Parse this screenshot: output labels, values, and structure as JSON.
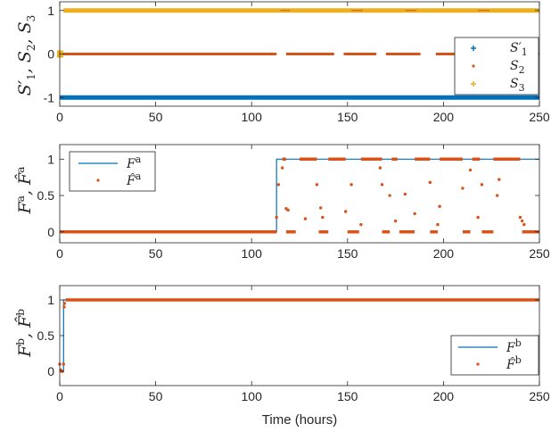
{
  "colors": {
    "blue": "#0072BD",
    "orange": "#D95319",
    "yellow": "#EDB120",
    "axis": "#262626"
  },
  "chart_data": [
    {
      "type": "scatter",
      "xlim": [
        0,
        250
      ],
      "ylim": [
        -1.2,
        1.2
      ],
      "xticks": [
        0,
        50,
        100,
        150,
        200,
        250
      ],
      "yticks": [
        -1,
        0,
        1
      ],
      "yticklabels": [
        "-1",
        "0",
        "1"
      ],
      "ylabel": "S′1, S2, S3",
      "legend_position": "right",
      "series": [
        {
          "name": "S′1",
          "marker": "plus",
          "color": "#0072BD",
          "values": "-1 for all hours 0–250"
        },
        {
          "name": "S2",
          "marker": "dot",
          "color": "#D95319",
          "values": "0 for hours 0–113, 118–143, 148–165, 170–188, 196–215, 220–240, 245–250"
        },
        {
          "name": "S3",
          "marker": "plus",
          "color": "#EDB120",
          "values": "1 for all hours 0–250 (0 during hours 0–3)"
        }
      ]
    },
    {
      "type": "line",
      "xlim": [
        0,
        250
      ],
      "ylim": [
        -0.15,
        1.2
      ],
      "xticks": [
        0,
        50,
        100,
        150,
        200,
        250
      ],
      "yticks": [
        0,
        0.5,
        1
      ],
      "yticklabels": [
        "0",
        "0.5",
        "1"
      ],
      "ylabel": "Fa, F̂a",
      "legend_position": "top-left",
      "series": [
        {
          "name": "Fa",
          "style": "line",
          "color": "#0072BD",
          "x": [
            0,
            113,
            113,
            250
          ],
          "y": [
            0,
            0,
            1,
            1
          ]
        },
        {
          "name": "F̂a",
          "style": "dots",
          "color": "#D95319",
          "segments_at_1": [
            [
              116,
              118
            ],
            [
              125,
              134
            ],
            [
              140,
              149
            ],
            [
              157,
              168
            ],
            [
              173,
              176
            ],
            [
              185,
              193
            ],
            [
              198,
              210
            ],
            [
              215,
              219
            ],
            [
              226,
              240
            ]
          ],
          "segments_at_0": [
            [
              0,
              113
            ],
            [
              118,
              123
            ],
            [
              135,
              140
            ],
            [
              150,
              156
            ],
            [
              168,
              172
            ],
            [
              177,
              185
            ],
            [
              193,
              197
            ],
            [
              210,
              214
            ],
            [
              220,
              226
            ],
            [
              241,
              250
            ]
          ],
          "scatter": [
            [
              113,
              0.2
            ],
            [
              114,
              0.65
            ],
            [
              116,
              0.88
            ],
            [
              118,
              0.32
            ],
            [
              119,
              0.3
            ],
            [
              128,
              0.18
            ],
            [
              134,
              0.65
            ],
            [
              136,
              0.33
            ],
            [
              137,
              0.2
            ],
            [
              149,
              0.28
            ],
            [
              152,
              0.65
            ],
            [
              157,
              0.1
            ],
            [
              167,
              0.88
            ],
            [
              168,
              0.65
            ],
            [
              172,
              0.5
            ],
            [
              175,
              0.15
            ],
            [
              180,
              0.52
            ],
            [
              185,
              0.25
            ],
            [
              193,
              0.68
            ],
            [
              197,
              0.1
            ],
            [
              198,
              0.35
            ],
            [
              210,
              0.6
            ],
            [
              214,
              0.85
            ],
            [
              218,
              0.2
            ],
            [
              220,
              0.65
            ],
            [
              228,
              0.5
            ],
            [
              229,
              0.72
            ],
            [
              240,
              0.2
            ],
            [
              241,
              0.15
            ],
            [
              242,
              0.1
            ]
          ]
        }
      ]
    },
    {
      "type": "line",
      "xlim": [
        0,
        250
      ],
      "ylim": [
        -0.2,
        1.2
      ],
      "xticks": [
        0,
        50,
        100,
        150,
        200,
        250
      ],
      "yticks": [
        0,
        0.5,
        1
      ],
      "yticklabels": [
        "0",
        "0.5",
        "1"
      ],
      "ylabel": "Fb, F̂b",
      "xlabel": "Time (hours)",
      "legend_position": "bottom-right",
      "series": [
        {
          "name": "Fb",
          "style": "line",
          "color": "#0072BD",
          "x": [
            0,
            2,
            2,
            250
          ],
          "y": [
            0,
            0,
            1,
            1
          ]
        },
        {
          "name": "F̂b",
          "style": "dots",
          "color": "#D95319",
          "segments_at_1": [
            [
              3,
              250
            ]
          ],
          "scatter": [
            [
              0,
              0.1
            ],
            [
              0.5,
              0.02
            ],
            [
              1,
              0.0
            ],
            [
              1.5,
              0.0
            ],
            [
              2,
              0.1
            ],
            [
              2.3,
              0.9
            ],
            [
              2.5,
              0.95
            ]
          ]
        }
      ]
    }
  ]
}
